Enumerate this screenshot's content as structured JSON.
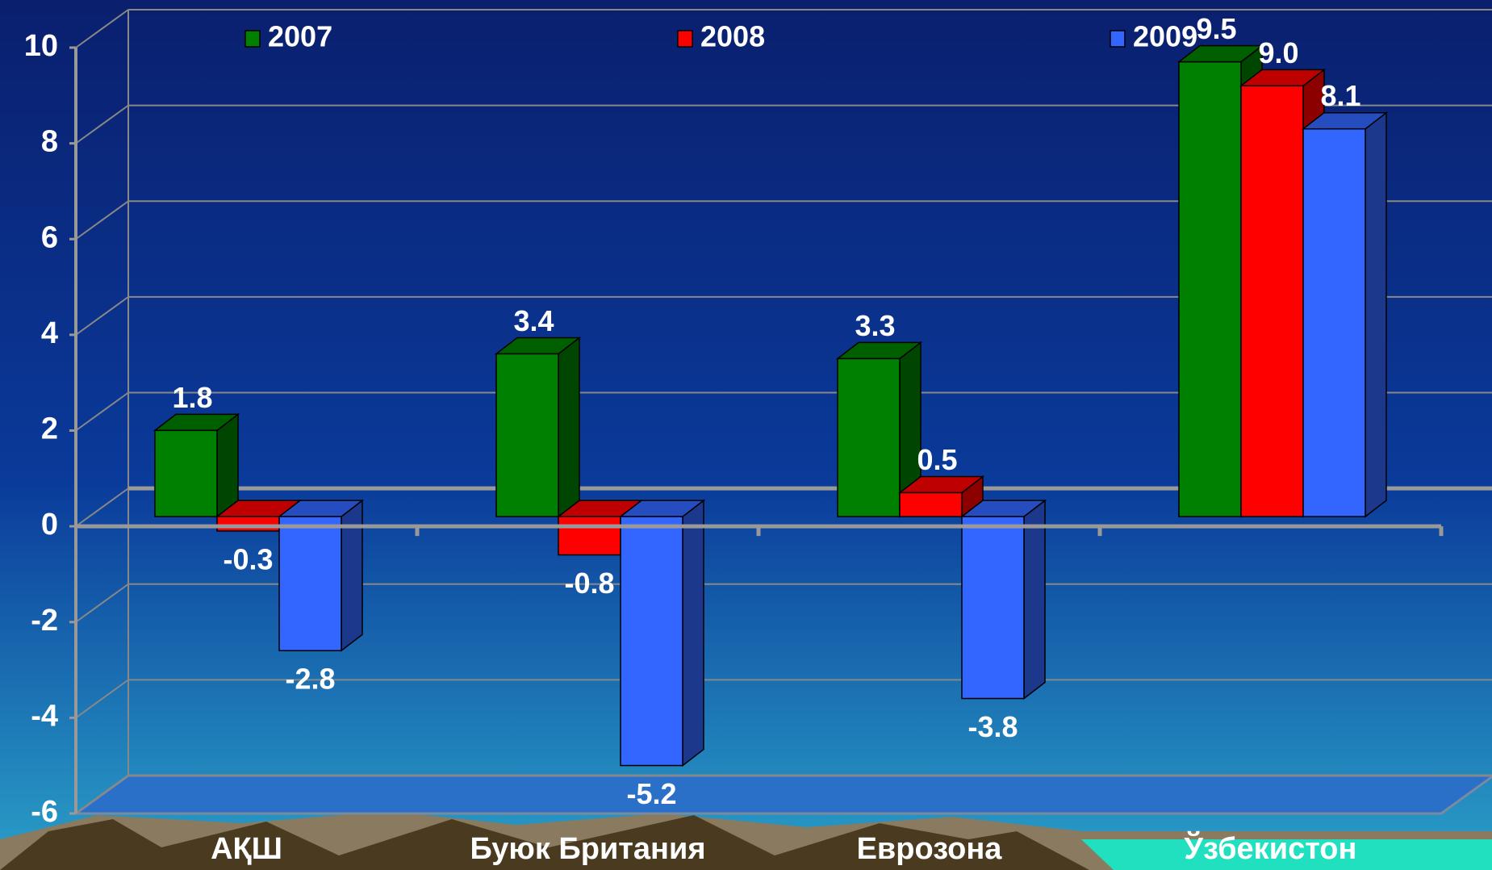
{
  "chart_data": {
    "type": "bar3d",
    "categories": [
      "АҚШ",
      "Буюк Британия",
      "Еврозона",
      "Ўзбекистон"
    ],
    "series": [
      {
        "name": "2007",
        "color": "#008000",
        "values": [
          1.8,
          3.4,
          3.3,
          9.5
        ],
        "value_labels": [
          "1.8",
          "3.4",
          "3.3",
          "9.5"
        ]
      },
      {
        "name": "2008",
        "color": "#ff0000",
        "values": [
          -0.3,
          -0.8,
          0.5,
          9.0
        ],
        "value_labels": [
          "-0.3",
          "-0.8",
          "0.5",
          "9.0"
        ]
      },
      {
        "name": "2009",
        "color": "#3366ff",
        "values": [
          -2.8,
          -5.2,
          -3.8,
          8.1
        ],
        "value_labels": [
          "-2.8",
          "-5.2",
          "-3.8",
          "8.1"
        ]
      }
    ],
    "ylim": [
      -6,
      10
    ],
    "yticks": [
      -6,
      -4,
      -2,
      0,
      2,
      4,
      6,
      8,
      10
    ],
    "grid": true,
    "legend": "top"
  }
}
